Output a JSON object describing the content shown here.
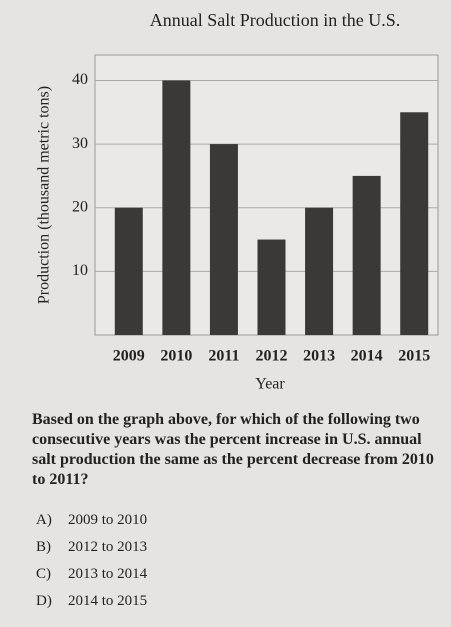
{
  "chart_data": {
    "type": "bar",
    "title": "Annual Salt Production in the U.S.",
    "x_label": "Year",
    "y_label": "Production (thousand metric tons)",
    "categories": [
      "2009",
      "2010",
      "2011",
      "2012",
      "2013",
      "2014",
      "2015"
    ],
    "values": [
      20,
      40,
      30,
      15,
      20,
      25,
      35
    ],
    "color": "#3b3838",
    "ylim": [
      0,
      44
    ],
    "yticks": [
      10,
      20,
      30,
      40
    ],
    "grid": true
  },
  "question": {
    "text": "Based on the graph above, for which of the following two consecutive years was the percent increase in U.S. annual salt production the same as the percent decrease from 2010 to 2011?",
    "options": [
      {
        "letter": "A)",
        "text": "2009 to 2010"
      },
      {
        "letter": "B)",
        "text": "2012 to 2013"
      },
      {
        "letter": "C)",
        "text": "2013 to 2014"
      },
      {
        "letter": "D)",
        "text": "2014 to 2015"
      }
    ]
  }
}
